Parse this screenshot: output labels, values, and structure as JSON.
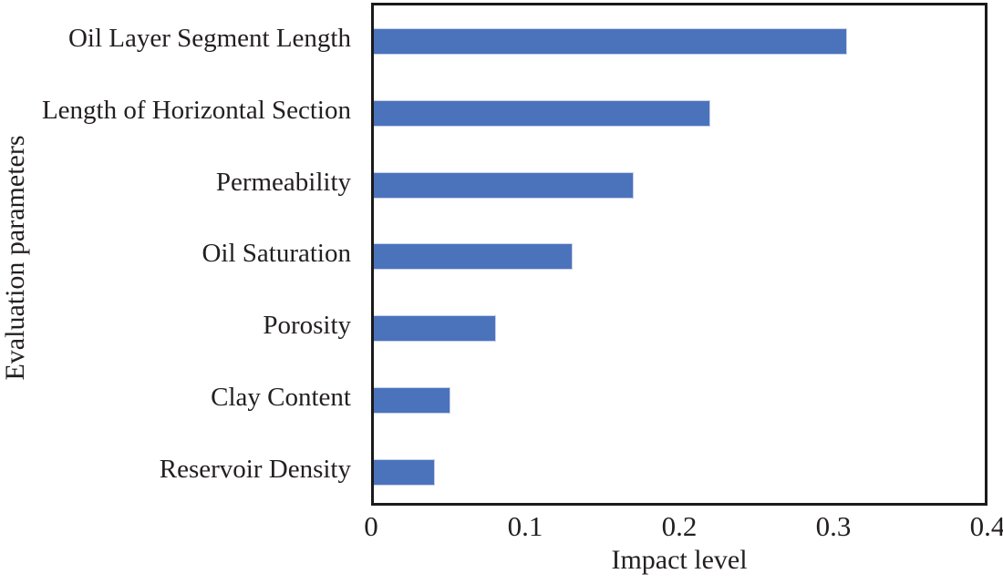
{
  "chart_data": {
    "type": "bar",
    "orientation": "horizontal",
    "title": "",
    "xlabel": "Impact level",
    "ylabel": "Evaluation parameters",
    "categories": [
      "Oil Layer Segment Length",
      "Length of Horizontal Section",
      "Permeability",
      "Oil Saturation",
      "Porosity",
      "Clay Content",
      "Reservoir Density"
    ],
    "values": [
      0.31,
      0.22,
      0.17,
      0.13,
      0.08,
      0.05,
      0.04
    ],
    "xlim": [
      0,
      0.4
    ],
    "xticks": [
      "0",
      "0.1",
      "0.2",
      "0.3",
      "0.4"
    ],
    "xtick_values": [
      0,
      0.1,
      0.2,
      0.3,
      0.4
    ],
    "grid": false,
    "legend_position": "none",
    "bar_color": "#4a73bc",
    "bar_edge_color": "#c9cfe9",
    "frame_color": "#1a1a1a",
    "text_color": "#231f20"
  }
}
